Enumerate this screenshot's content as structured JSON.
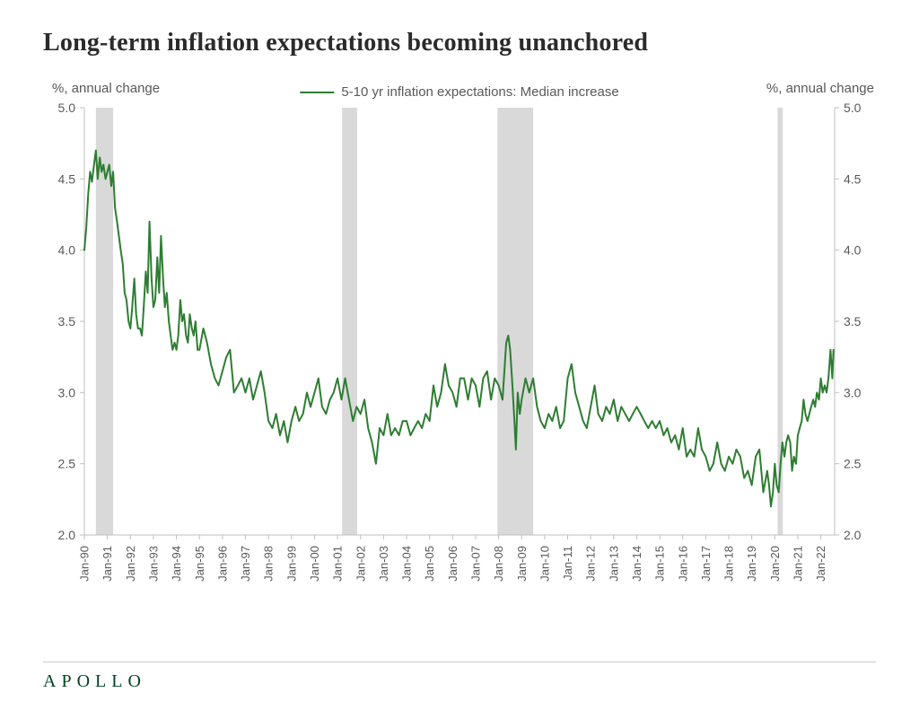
{
  "title": "Long-term inflation expectations becoming unanchored",
  "brand": "APOLLO",
  "chart": {
    "type": "line",
    "line_color": "#2e7d32",
    "line_width": 2,
    "recession_fill": "#d9d9d9",
    "background_color": "#ffffff",
    "axis_color": "#bfbfbf",
    "tick_color": "#bfbfbf",
    "text_color": "#595959",
    "tick_fontsize": 14,
    "xtick_fontsize": 13,
    "title_fontsize": 28,
    "y_axis_label_left": "%, annual change",
    "y_axis_label_right": "%, annual change",
    "legend_label": "5-10 yr inflation expectations: Median increase",
    "ylim": [
      2.0,
      5.0
    ],
    "ytick_step": 0.5,
    "y_ticks": [
      "2.0",
      "2.5",
      "3.0",
      "3.5",
      "4.0",
      "4.5",
      "5.0"
    ],
    "x_start_year": 1990,
    "x_end_year": 2022.6,
    "x_tick_years": [
      1990,
      1991,
      1992,
      1993,
      1994,
      1995,
      1996,
      1997,
      1998,
      1999,
      2000,
      2001,
      2002,
      2003,
      2004,
      2005,
      2006,
      2007,
      2008,
      2009,
      2010,
      2011,
      2012,
      2013,
      2014,
      2015,
      2016,
      2017,
      2018,
      2019,
      2020,
      2021,
      2022
    ],
    "x_tick_labels": [
      "Jan-90",
      "Jan-91",
      "Jan-92",
      "Jan-93",
      "Jan-94",
      "Jan-95",
      "Jan-96",
      "Jan-97",
      "Jan-98",
      "Jan-99",
      "Jan-00",
      "Jan-01",
      "Jan-02",
      "Jan-03",
      "Jan-04",
      "Jan-05",
      "Jan-06",
      "Jan-07",
      "Jan-08",
      "Jan-09",
      "Jan-10",
      "Jan-11",
      "Jan-12",
      "Jan-13",
      "Jan-14",
      "Jan-15",
      "Jan-16",
      "Jan-17",
      "Jan-18",
      "Jan-19",
      "Jan-20",
      "Jan-21",
      "Jan-22"
    ],
    "recessions": [
      {
        "start": 1990.5,
        "end": 1991.25
      },
      {
        "start": 2001.2,
        "end": 2001.85
      },
      {
        "start": 2007.95,
        "end": 2009.5
      },
      {
        "start": 2020.12,
        "end": 2020.35
      }
    ],
    "series": [
      [
        1990.0,
        4.0
      ],
      [
        1990.08,
        4.15
      ],
      [
        1990.17,
        4.4
      ],
      [
        1990.25,
        4.55
      ],
      [
        1990.33,
        4.48
      ],
      [
        1990.42,
        4.6
      ],
      [
        1990.5,
        4.7
      ],
      [
        1990.58,
        4.5
      ],
      [
        1990.67,
        4.65
      ],
      [
        1990.75,
        4.55
      ],
      [
        1990.83,
        4.6
      ],
      [
        1990.92,
        4.5
      ],
      [
        1991.0,
        4.55
      ],
      [
        1991.08,
        4.6
      ],
      [
        1991.17,
        4.45
      ],
      [
        1991.25,
        4.55
      ],
      [
        1991.33,
        4.3
      ],
      [
        1991.42,
        4.2
      ],
      [
        1991.5,
        4.1
      ],
      [
        1991.58,
        4.0
      ],
      [
        1991.67,
        3.9
      ],
      [
        1991.75,
        3.7
      ],
      [
        1991.83,
        3.65
      ],
      [
        1991.92,
        3.5
      ],
      [
        1992.0,
        3.45
      ],
      [
        1992.08,
        3.6
      ],
      [
        1992.17,
        3.8
      ],
      [
        1992.25,
        3.55
      ],
      [
        1992.33,
        3.45
      ],
      [
        1992.42,
        3.45
      ],
      [
        1992.5,
        3.4
      ],
      [
        1992.58,
        3.6
      ],
      [
        1992.67,
        3.85
      ],
      [
        1992.75,
        3.7
      ],
      [
        1992.83,
        4.2
      ],
      [
        1992.92,
        3.8
      ],
      [
        1993.0,
        3.6
      ],
      [
        1993.08,
        3.65
      ],
      [
        1993.17,
        3.95
      ],
      [
        1993.25,
        3.7
      ],
      [
        1993.33,
        4.1
      ],
      [
        1993.42,
        3.8
      ],
      [
        1993.5,
        3.6
      ],
      [
        1993.58,
        3.7
      ],
      [
        1993.67,
        3.5
      ],
      [
        1993.75,
        3.4
      ],
      [
        1993.83,
        3.3
      ],
      [
        1993.92,
        3.35
      ],
      [
        1994.0,
        3.3
      ],
      [
        1994.08,
        3.4
      ],
      [
        1994.17,
        3.65
      ],
      [
        1994.25,
        3.5
      ],
      [
        1994.33,
        3.55
      ],
      [
        1994.42,
        3.4
      ],
      [
        1994.5,
        3.35
      ],
      [
        1994.58,
        3.55
      ],
      [
        1994.67,
        3.45
      ],
      [
        1994.75,
        3.4
      ],
      [
        1994.83,
        3.5
      ],
      [
        1994.92,
        3.3
      ],
      [
        1995.0,
        3.3
      ],
      [
        1995.17,
        3.45
      ],
      [
        1995.33,
        3.35
      ],
      [
        1995.5,
        3.2
      ],
      [
        1995.67,
        3.1
      ],
      [
        1995.83,
        3.05
      ],
      [
        1996.0,
        3.15
      ],
      [
        1996.17,
        3.25
      ],
      [
        1996.33,
        3.3
      ],
      [
        1996.5,
        3.0
      ],
      [
        1996.67,
        3.05
      ],
      [
        1996.83,
        3.1
      ],
      [
        1997.0,
        3.0
      ],
      [
        1997.17,
        3.1
      ],
      [
        1997.33,
        2.95
      ],
      [
        1997.5,
        3.05
      ],
      [
        1997.67,
        3.15
      ],
      [
        1997.83,
        3.0
      ],
      [
        1998.0,
        2.8
      ],
      [
        1998.17,
        2.75
      ],
      [
        1998.33,
        2.85
      ],
      [
        1998.5,
        2.7
      ],
      [
        1998.67,
        2.8
      ],
      [
        1998.83,
        2.65
      ],
      [
        1999.0,
        2.8
      ],
      [
        1999.17,
        2.9
      ],
      [
        1999.33,
        2.8
      ],
      [
        1999.5,
        2.85
      ],
      [
        1999.67,
        3.0
      ],
      [
        1999.83,
        2.9
      ],
      [
        2000.0,
        3.0
      ],
      [
        2000.17,
        3.1
      ],
      [
        2000.33,
        2.9
      ],
      [
        2000.5,
        2.85
      ],
      [
        2000.67,
        2.95
      ],
      [
        2000.83,
        3.0
      ],
      [
        2001.0,
        3.1
      ],
      [
        2001.17,
        2.95
      ],
      [
        2001.33,
        3.1
      ],
      [
        2001.5,
        2.95
      ],
      [
        2001.67,
        2.8
      ],
      [
        2001.83,
        2.9
      ],
      [
        2002.0,
        2.85
      ],
      [
        2002.17,
        2.95
      ],
      [
        2002.33,
        2.75
      ],
      [
        2002.5,
        2.65
      ],
      [
        2002.67,
        2.5
      ],
      [
        2002.83,
        2.75
      ],
      [
        2003.0,
        2.7
      ],
      [
        2003.17,
        2.85
      ],
      [
        2003.33,
        2.7
      ],
      [
        2003.5,
        2.75
      ],
      [
        2003.67,
        2.7
      ],
      [
        2003.83,
        2.8
      ],
      [
        2004.0,
        2.8
      ],
      [
        2004.17,
        2.7
      ],
      [
        2004.33,
        2.75
      ],
      [
        2004.5,
        2.8
      ],
      [
        2004.67,
        2.75
      ],
      [
        2004.83,
        2.85
      ],
      [
        2005.0,
        2.8
      ],
      [
        2005.17,
        3.05
      ],
      [
        2005.33,
        2.9
      ],
      [
        2005.5,
        3.0
      ],
      [
        2005.67,
        3.2
      ],
      [
        2005.83,
        3.05
      ],
      [
        2006.0,
        3.0
      ],
      [
        2006.17,
        2.9
      ],
      [
        2006.33,
        3.1
      ],
      [
        2006.5,
        3.1
      ],
      [
        2006.67,
        2.95
      ],
      [
        2006.83,
        3.1
      ],
      [
        2007.0,
        3.05
      ],
      [
        2007.17,
        2.9
      ],
      [
        2007.33,
        3.1
      ],
      [
        2007.5,
        3.15
      ],
      [
        2007.67,
        2.95
      ],
      [
        2007.83,
        3.1
      ],
      [
        2008.0,
        3.05
      ],
      [
        2008.17,
        2.95
      ],
      [
        2008.33,
        3.35
      ],
      [
        2008.42,
        3.4
      ],
      [
        2008.5,
        3.3
      ],
      [
        2008.58,
        3.1
      ],
      [
        2008.67,
        2.85
      ],
      [
        2008.75,
        2.6
      ],
      [
        2008.83,
        3.0
      ],
      [
        2008.92,
        2.85
      ],
      [
        2009.0,
        2.95
      ],
      [
        2009.17,
        3.1
      ],
      [
        2009.33,
        3.0
      ],
      [
        2009.5,
        3.1
      ],
      [
        2009.67,
        2.9
      ],
      [
        2009.83,
        2.8
      ],
      [
        2010.0,
        2.75
      ],
      [
        2010.17,
        2.85
      ],
      [
        2010.33,
        2.8
      ],
      [
        2010.5,
        2.9
      ],
      [
        2010.67,
        2.75
      ],
      [
        2010.83,
        2.8
      ],
      [
        2011.0,
        3.1
      ],
      [
        2011.17,
        3.2
      ],
      [
        2011.33,
        3.0
      ],
      [
        2011.5,
        2.9
      ],
      [
        2011.67,
        2.8
      ],
      [
        2011.83,
        2.75
      ],
      [
        2012.0,
        2.9
      ],
      [
        2012.17,
        3.05
      ],
      [
        2012.33,
        2.85
      ],
      [
        2012.5,
        2.8
      ],
      [
        2012.67,
        2.9
      ],
      [
        2012.83,
        2.85
      ],
      [
        2013.0,
        2.95
      ],
      [
        2013.17,
        2.8
      ],
      [
        2013.33,
        2.9
      ],
      [
        2013.5,
        2.85
      ],
      [
        2013.67,
        2.8
      ],
      [
        2013.83,
        2.85
      ],
      [
        2014.0,
        2.9
      ],
      [
        2014.17,
        2.85
      ],
      [
        2014.33,
        2.8
      ],
      [
        2014.5,
        2.75
      ],
      [
        2014.67,
        2.8
      ],
      [
        2014.83,
        2.75
      ],
      [
        2015.0,
        2.8
      ],
      [
        2015.17,
        2.7
      ],
      [
        2015.33,
        2.75
      ],
      [
        2015.5,
        2.65
      ],
      [
        2015.67,
        2.7
      ],
      [
        2015.83,
        2.6
      ],
      [
        2016.0,
        2.75
      ],
      [
        2016.17,
        2.55
      ],
      [
        2016.33,
        2.6
      ],
      [
        2016.5,
        2.55
      ],
      [
        2016.67,
        2.75
      ],
      [
        2016.83,
        2.6
      ],
      [
        2017.0,
        2.55
      ],
      [
        2017.17,
        2.45
      ],
      [
        2017.33,
        2.5
      ],
      [
        2017.5,
        2.65
      ],
      [
        2017.67,
        2.5
      ],
      [
        2017.83,
        2.45
      ],
      [
        2018.0,
        2.55
      ],
      [
        2018.17,
        2.5
      ],
      [
        2018.33,
        2.6
      ],
      [
        2018.5,
        2.55
      ],
      [
        2018.67,
        2.4
      ],
      [
        2018.83,
        2.45
      ],
      [
        2019.0,
        2.35
      ],
      [
        2019.17,
        2.55
      ],
      [
        2019.33,
        2.6
      ],
      [
        2019.5,
        2.3
      ],
      [
        2019.67,
        2.45
      ],
      [
        2019.75,
        2.35
      ],
      [
        2019.83,
        2.2
      ],
      [
        2019.92,
        2.3
      ],
      [
        2020.0,
        2.5
      ],
      [
        2020.08,
        2.35
      ],
      [
        2020.17,
        2.3
      ],
      [
        2020.25,
        2.5
      ],
      [
        2020.33,
        2.65
      ],
      [
        2020.42,
        2.55
      ],
      [
        2020.5,
        2.65
      ],
      [
        2020.58,
        2.7
      ],
      [
        2020.67,
        2.65
      ],
      [
        2020.75,
        2.45
      ],
      [
        2020.83,
        2.55
      ],
      [
        2020.92,
        2.5
      ],
      [
        2021.0,
        2.7
      ],
      [
        2021.08,
        2.75
      ],
      [
        2021.17,
        2.8
      ],
      [
        2021.25,
        2.95
      ],
      [
        2021.33,
        2.85
      ],
      [
        2021.42,
        2.8
      ],
      [
        2021.5,
        2.85
      ],
      [
        2021.58,
        2.9
      ],
      [
        2021.67,
        2.95
      ],
      [
        2021.75,
        2.9
      ],
      [
        2021.83,
        3.0
      ],
      [
        2021.92,
        2.95
      ],
      [
        2022.0,
        3.1
      ],
      [
        2022.08,
        3.0
      ],
      [
        2022.17,
        3.05
      ],
      [
        2022.25,
        3.0
      ],
      [
        2022.33,
        3.1
      ],
      [
        2022.42,
        3.3
      ],
      [
        2022.5,
        3.1
      ],
      [
        2022.55,
        3.3
      ]
    ]
  }
}
